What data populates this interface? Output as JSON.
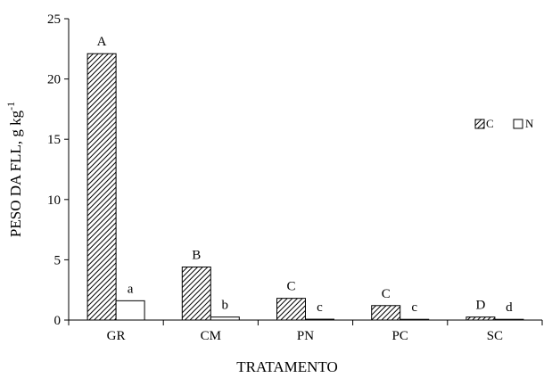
{
  "chart_data": {
    "type": "bar",
    "categories": [
      "GR",
      "CM",
      "PN",
      "PC",
      "SC"
    ],
    "series": [
      {
        "name": "C",
        "values": [
          22.1,
          4.4,
          1.8,
          1.2,
          0.25
        ],
        "letters": [
          "A",
          "B",
          "C",
          "C",
          "D"
        ],
        "pattern": "hatched"
      },
      {
        "name": "N",
        "values": [
          1.6,
          0.25,
          0.07,
          0.05,
          0.02
        ],
        "letters": [
          "a",
          "b",
          "c",
          "c",
          "d"
        ],
        "pattern": "white"
      }
    ],
    "xlabel": "TRATAMENTO",
    "ylabel": "PESO DA FLL, g kg",
    "ylabel_superscript": "-1",
    "ylim": [
      0,
      25
    ],
    "yticks": [
      0,
      5,
      10,
      15,
      20,
      25
    ],
    "grid": false,
    "legend_position": "top-right",
    "colors": {
      "bar_stroke": "#000000",
      "hatch": "#000000",
      "empty_fill": "#ffffff"
    }
  }
}
